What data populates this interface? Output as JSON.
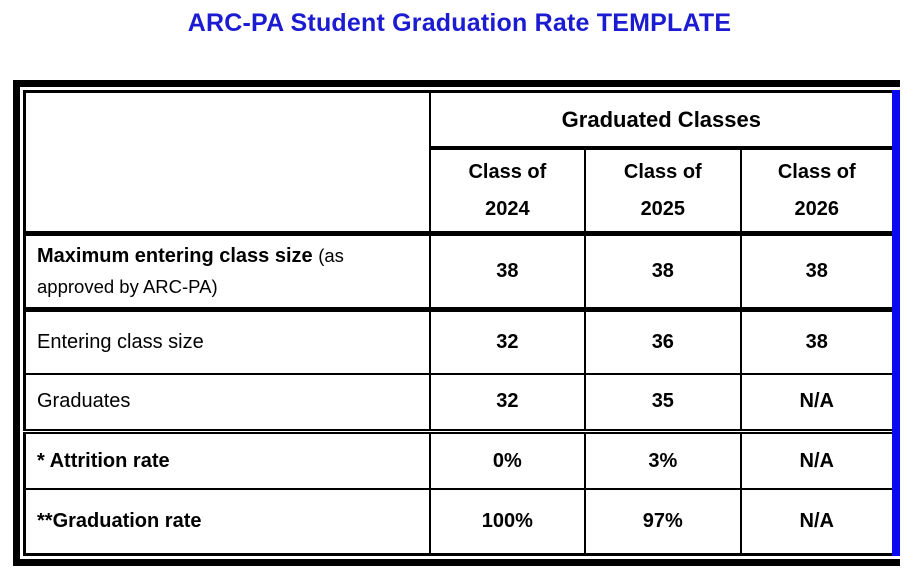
{
  "page": {
    "title": "ARC-PA Student Graduation Rate TEMPLATE"
  },
  "table": {
    "group_header": "Graduated Classes",
    "columns": [
      {
        "line1": "Class of",
        "line2": "2024"
      },
      {
        "line1": "Class of",
        "line2": "2025"
      },
      {
        "line1": "Class of",
        "line2": "2026"
      }
    ],
    "rows": [
      {
        "label_bold": "Maximum entering class size",
        "label_note": "(as approved by ARC-PA)",
        "values": [
          "38",
          "38",
          "38"
        ]
      },
      {
        "label": "Entering class size",
        "values": [
          "32",
          "36",
          "38"
        ]
      },
      {
        "label": "Graduates",
        "values": [
          "32",
          "35",
          "N/A"
        ]
      },
      {
        "label": "* Attrition rate",
        "values": [
          "0%",
          "3%",
          "N/A"
        ]
      },
      {
        "label": "**Graduation rate",
        "values": [
          "100%",
          "97%",
          "N/A"
        ]
      }
    ]
  },
  "colors": {
    "title_blue": "#1b1bd2",
    "stripe_blue": "#0a0af0"
  }
}
